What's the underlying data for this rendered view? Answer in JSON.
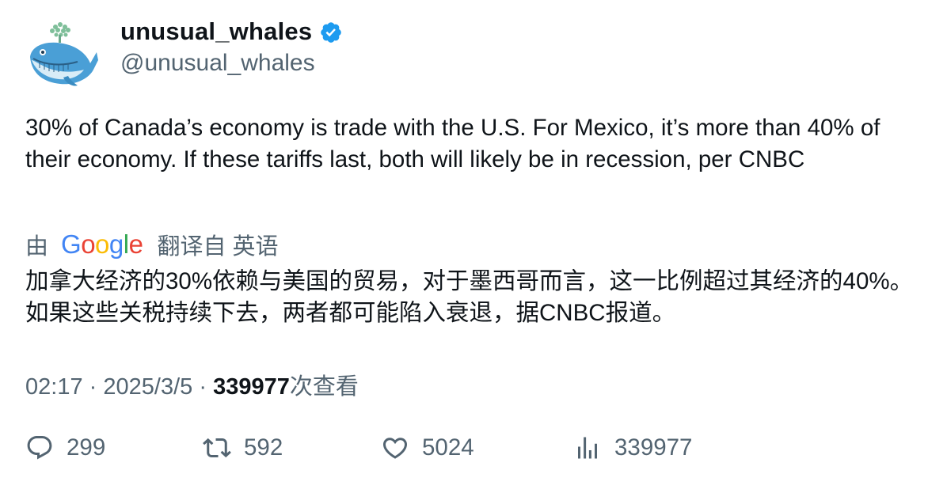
{
  "author": {
    "display_name": "unusual_whales",
    "handle": "@unusual_whales",
    "verified": true,
    "verified_color": "#1d9bf0"
  },
  "tweet": {
    "text": "30% of Canada’s economy is trade with the U.S. For Mexico, it’s more than 40% of their economy. If these tariffs last, both will likely be in recession, per CNBC"
  },
  "translation": {
    "prefix": "由",
    "provider": "Google",
    "label": "翻译自 英语",
    "text": "加拿大经济的30%依赖与美国的贸易，对于墨西哥而言，这一比例超过其经济的40%。如果这些关税持续下去，两者都可能陷入衰退，据CNBC报道。"
  },
  "meta": {
    "time": "02:17",
    "separator": "·",
    "date": "2025/3/5",
    "views_count": "339977",
    "views_label": "次查看"
  },
  "actions": {
    "replies": "299",
    "retweets": "592",
    "likes": "5024",
    "views": "339977"
  }
}
